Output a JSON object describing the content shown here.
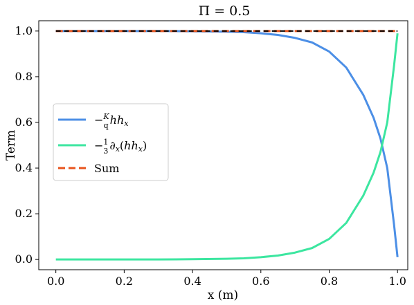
{
  "chart_data": {
    "type": "line",
    "title": "Π = 0.5",
    "xlabel": "x (m)",
    "ylabel": "Term",
    "xlim": [
      -0.05,
      1.03
    ],
    "ylim": [
      -0.045,
      1.045
    ],
    "xticks": [
      0.0,
      0.2,
      0.4,
      0.6,
      0.8,
      1.0
    ],
    "xtick_labels": [
      "0.0",
      "0.2",
      "0.4",
      "0.6",
      "0.8",
      "1.0"
    ],
    "yticks": [
      0.0,
      0.2,
      0.4,
      0.6,
      0.8,
      1.0
    ],
    "ytick_labels": [
      "0.0",
      "0.2",
      "0.4",
      "0.6",
      "0.8",
      "1.0"
    ],
    "grid": false,
    "legend_position": "center-left",
    "series": [
      {
        "name": "−(K/q) h hx",
        "color": "#4c8fe6",
        "dash": "solid",
        "x": [
          0.0,
          0.1,
          0.2,
          0.3,
          0.4,
          0.5,
          0.55,
          0.6,
          0.65,
          0.7,
          0.75,
          0.8,
          0.85,
          0.9,
          0.93,
          0.95,
          0.97,
          0.99,
          1.0
        ],
        "y": [
          1.0,
          1.0,
          1.0,
          1.0,
          0.999,
          0.997,
          0.995,
          0.99,
          0.983,
          0.97,
          0.95,
          0.91,
          0.84,
          0.72,
          0.62,
          0.53,
          0.4,
          0.15,
          0.01
        ]
      },
      {
        "name": "−(1/3) ∂x(h hx)",
        "color": "#3ce6a0",
        "dash": "solid",
        "x": [
          0.0,
          0.1,
          0.2,
          0.3,
          0.4,
          0.5,
          0.55,
          0.6,
          0.65,
          0.7,
          0.75,
          0.8,
          0.85,
          0.9,
          0.93,
          0.95,
          0.97,
          0.99,
          1.0
        ],
        "y": [
          0.0,
          0.0,
          0.0,
          0.0,
          0.001,
          0.003,
          0.005,
          0.01,
          0.017,
          0.03,
          0.05,
          0.09,
          0.16,
          0.28,
          0.38,
          0.47,
          0.6,
          0.85,
          0.99
        ]
      },
      {
        "name": "Sum",
        "color": "#e8541c",
        "dash": "dashed",
        "x": [
          0.0,
          1.0
        ],
        "y": [
          1.0,
          1.0
        ]
      },
      {
        "name": "",
        "color": "#000000",
        "dash": "dashed",
        "x": [
          0.0,
          1.0
        ],
        "y": [
          1.0,
          1.0
        ]
      }
    ]
  }
}
